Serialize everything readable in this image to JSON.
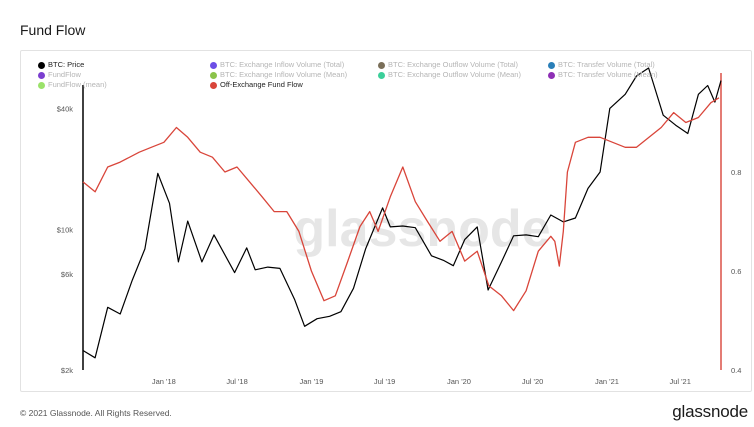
{
  "page": {
    "title": "Fund Flow",
    "copyright": "© 2021 Glassnode. All Rights Reserved.",
    "logo": "glassnode",
    "watermark": "glassnode"
  },
  "legend": [
    {
      "label": "BTC: Price",
      "color": "#000000",
      "active": true
    },
    {
      "label": "BTC: Exchange Inflow Volume (Total)",
      "color": "#6c4ee6",
      "active": false
    },
    {
      "label": "BTC: Exchange Outflow Volume (Total)",
      "color": "#7a6f59",
      "active": false
    },
    {
      "label": "BTC: Transfer Volume (Total)",
      "color": "#2a7fb8",
      "active": false
    },
    {
      "label": "FundFlow",
      "color": "#7b3fd0",
      "active": false
    },
    {
      "label": "BTC: Exchange Inflow Volume (Mean)",
      "color": "#8bc34a",
      "active": false
    },
    {
      "label": "BTC: Exchange Outflow Volume (Mean)",
      "color": "#3ccf9a",
      "active": false
    },
    {
      "label": "BTC: Transfer Volume (Mean)",
      "color": "#8e2fb5",
      "active": false
    },
    {
      "label": "FundFlow (mean)",
      "color": "#9be26a",
      "active": false
    },
    {
      "label": "Off-Exchange Fund Flow",
      "color": "#d9453a",
      "active": true
    }
  ],
  "chart_data": {
    "type": "line",
    "title": "Fund Flow",
    "x_ticks": [
      "Jan '18",
      "Jul '18",
      "Jan '19",
      "Jul '19",
      "Jan '20",
      "Jul '20",
      "Jan '21",
      "Jul '21"
    ],
    "x_range": [
      "2017-06-15",
      "2021-10-10"
    ],
    "y_left": {
      "scale": "log",
      "ticks": [
        "$2k",
        "$6k",
        "$10k",
        "$40k"
      ],
      "tick_values": [
        2000,
        6000,
        10000,
        40000
      ],
      "range": [
        2000,
        60000
      ]
    },
    "y_right": {
      "scale": "linear",
      "ticks": [
        "0.4",
        "0.6",
        "0.8"
      ],
      "tick_values": [
        0.4,
        0.6,
        0.8
      ],
      "range": [
        0.4,
        1.0
      ]
    },
    "grid": false,
    "legend_position": "top",
    "series": [
      {
        "name": "BTC: Price",
        "axis": "left",
        "color": "#000000",
        "x": [
          "2017-06-15",
          "2017-07-15",
          "2017-08-15",
          "2017-09-15",
          "2017-10-15",
          "2017-11-15",
          "2017-12-17",
          "2018-01-15",
          "2018-02-06",
          "2018-03-01",
          "2018-04-05",
          "2018-05-05",
          "2018-06-25",
          "2018-07-25",
          "2018-08-15",
          "2018-09-15",
          "2018-10-15",
          "2018-11-20",
          "2018-12-15",
          "2019-01-15",
          "2019-02-15",
          "2019-03-15",
          "2019-04-15",
          "2019-05-15",
          "2019-06-26",
          "2019-07-15",
          "2019-08-15",
          "2019-09-15",
          "2019-10-25",
          "2019-11-25",
          "2019-12-18",
          "2020-01-15",
          "2020-02-15",
          "2020-03-13",
          "2020-04-15",
          "2020-05-15",
          "2020-06-15",
          "2020-07-15",
          "2020-08-15",
          "2020-09-15",
          "2020-10-15",
          "2020-11-15",
          "2020-12-15",
          "2021-01-08",
          "2021-02-15",
          "2021-03-15",
          "2021-04-14",
          "2021-05-20",
          "2021-06-20",
          "2021-07-20",
          "2021-08-15",
          "2021-09-07",
          "2021-09-25",
          "2021-10-10"
        ],
        "values": [
          2500,
          2300,
          4100,
          3800,
          5600,
          8000,
          19000,
          13500,
          6900,
          11000,
          6900,
          9400,
          6100,
          8100,
          6300,
          6500,
          6400,
          4500,
          3300,
          3600,
          3700,
          3900,
          5100,
          8000,
          12800,
          10300,
          10400,
          10200,
          7400,
          7000,
          6600,
          8900,
          10300,
          5000,
          6900,
          9300,
          9400,
          9200,
          11800,
          10900,
          11400,
          16000,
          19300,
          40000,
          47000,
          58000,
          63500,
          37000,
          33000,
          30000,
          47000,
          52000,
          43000,
          55000
        ]
      },
      {
        "name": "Off-Exchange Fund Flow",
        "axis": "right",
        "color": "#d9453a",
        "x": [
          "2017-06-15",
          "2017-07-15",
          "2017-08-15",
          "2017-09-15",
          "2017-11-01",
          "2017-12-01",
          "2018-01-01",
          "2018-02-01",
          "2018-03-01",
          "2018-04-01",
          "2018-05-01",
          "2018-06-01",
          "2018-07-01",
          "2018-08-01",
          "2018-09-01",
          "2018-10-01",
          "2018-11-01",
          "2018-12-01",
          "2019-01-01",
          "2019-02-01",
          "2019-03-01",
          "2019-04-01",
          "2019-05-01",
          "2019-05-25",
          "2019-06-15",
          "2019-07-15",
          "2019-08-15",
          "2019-09-15",
          "2019-10-15",
          "2019-11-15",
          "2019-12-15",
          "2020-01-15",
          "2020-02-15",
          "2020-03-15",
          "2020-04-15",
          "2020-05-15",
          "2020-06-15",
          "2020-07-15",
          "2020-08-15",
          "2020-08-25",
          "2020-09-05",
          "2020-09-15",
          "2020-09-25",
          "2020-10-15",
          "2020-11-15",
          "2020-12-15",
          "2021-01-15",
          "2021-02-15",
          "2021-03-15",
          "2021-04-15",
          "2021-05-15",
          "2021-06-15",
          "2021-07-15",
          "2021-08-15",
          "2021-09-15",
          "2021-10-05"
        ],
        "values": [
          0.78,
          0.76,
          0.81,
          0.82,
          0.84,
          0.85,
          0.86,
          0.89,
          0.87,
          0.84,
          0.83,
          0.8,
          0.81,
          0.78,
          0.75,
          0.72,
          0.72,
          0.68,
          0.6,
          0.54,
          0.55,
          0.62,
          0.69,
          0.72,
          0.68,
          0.75,
          0.81,
          0.74,
          0.7,
          0.66,
          0.68,
          0.62,
          0.64,
          0.57,
          0.55,
          0.52,
          0.56,
          0.64,
          0.67,
          0.66,
          0.61,
          0.68,
          0.8,
          0.86,
          0.87,
          0.87,
          0.86,
          0.85,
          0.85,
          0.87,
          0.89,
          0.92,
          0.9,
          0.91,
          0.94,
          0.95
        ]
      }
    ]
  }
}
